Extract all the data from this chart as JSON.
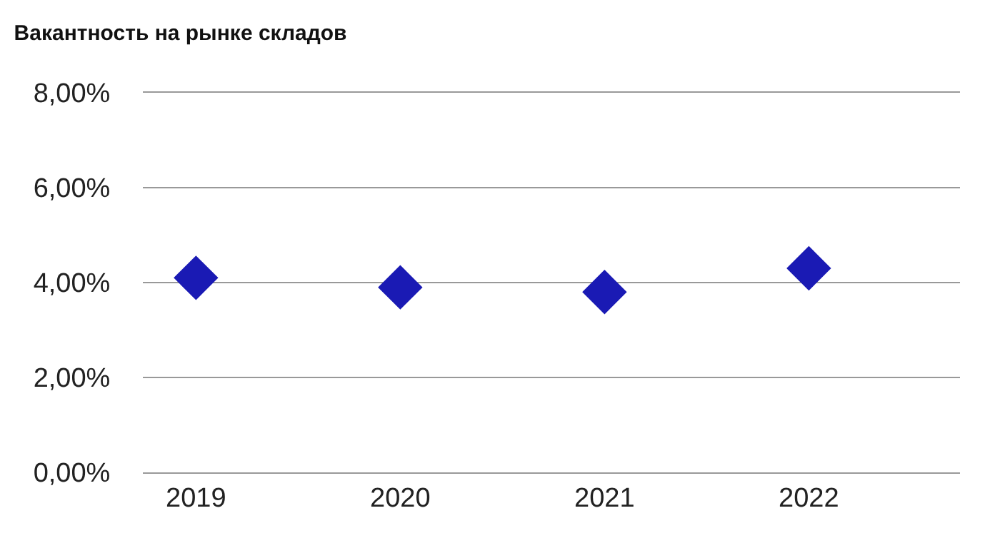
{
  "chart_data": {
    "type": "scatter",
    "title": "Вакантность на рынке складов",
    "categories": [
      "2019",
      "2020",
      "2021",
      "2022"
    ],
    "series": [
      {
        "color": "#1a1ab4",
        "values": [
          4.1,
          3.9,
          3.8,
          4.3
        ]
      }
    ],
    "ylim": [
      0,
      8
    ],
    "yticks": [
      {
        "value": 0,
        "label": "0,00%"
      },
      {
        "value": 2,
        "label": "2,00%"
      },
      {
        "value": 4,
        "label": "4,00%"
      },
      {
        "value": 6,
        "label": "6,00%"
      },
      {
        "value": 8,
        "label": "8,00%"
      }
    ],
    "grid": "y",
    "marker": "diamond"
  }
}
